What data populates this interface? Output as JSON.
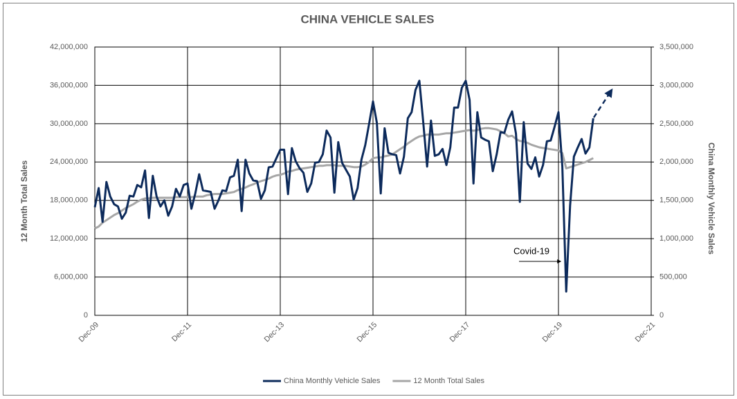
{
  "chart_data": {
    "type": "line",
    "title": "CHINA VEHICLE SALES",
    "y_label": "12 Month Total Sales",
    "y2_label": "China Monthly Vehicle Sales",
    "annotation": "Covid-19",
    "legend": "bottom",
    "grid": true,
    "x": [
      "Dec-09",
      "Jan-10",
      "Feb-10",
      "Mar-10",
      "Apr-10",
      "May-10",
      "Jun-10",
      "Jul-10",
      "Aug-10",
      "Sep-10",
      "Oct-10",
      "Nov-10",
      "Dec-10",
      "Jan-11",
      "Feb-11",
      "Mar-11",
      "Apr-11",
      "May-11",
      "Jun-11",
      "Jul-11",
      "Aug-11",
      "Sep-11",
      "Oct-11",
      "Nov-11",
      "Dec-11",
      "Jan-12",
      "Feb-12",
      "Mar-12",
      "Apr-12",
      "May-12",
      "Jun-12",
      "Jul-12",
      "Aug-12",
      "Sep-12",
      "Oct-12",
      "Nov-12",
      "Dec-12",
      "Jan-13",
      "Feb-13",
      "Mar-13",
      "Apr-13",
      "May-13",
      "Jun-13",
      "Jul-13",
      "Aug-13",
      "Sep-13",
      "Oct-13",
      "Nov-13",
      "Dec-13",
      "Jan-14",
      "Feb-14",
      "Mar-14",
      "Apr-14",
      "May-14",
      "Jun-14",
      "Jul-14",
      "Aug-14",
      "Sep-14",
      "Oct-14",
      "Nov-14",
      "Dec-14",
      "Jan-15",
      "Feb-15",
      "Mar-15",
      "Apr-15",
      "May-15",
      "Jun-15",
      "Jul-15",
      "Aug-15",
      "Sep-15",
      "Oct-15",
      "Nov-15",
      "Dec-15",
      "Jan-16",
      "Feb-16",
      "Mar-16",
      "Apr-16",
      "May-16",
      "Jun-16",
      "Jul-16",
      "Aug-16",
      "Sep-16",
      "Oct-16",
      "Nov-16",
      "Dec-16",
      "Jan-17",
      "Feb-17",
      "Mar-17",
      "Apr-17",
      "May-17",
      "Jun-17",
      "Jul-17",
      "Aug-17",
      "Sep-17",
      "Oct-17",
      "Nov-17",
      "Dec-17",
      "Jan-18",
      "Feb-18",
      "Mar-18",
      "Apr-18",
      "May-18",
      "Jun-18",
      "Jul-18",
      "Aug-18",
      "Sep-18",
      "Oct-18",
      "Nov-18",
      "Dec-18",
      "Jan-19",
      "Feb-19",
      "Mar-19",
      "Apr-19",
      "May-19",
      "Jun-19",
      "Jul-19",
      "Aug-19",
      "Sep-19",
      "Oct-19",
      "Nov-19",
      "Dec-19",
      "Jan-20",
      "Feb-20",
      "Mar-20",
      "Apr-20",
      "May-20",
      "Jun-20",
      "Jul-20",
      "Aug-20",
      "Sep-20"
    ],
    "xlim": [
      "Dec-09",
      "Dec-21"
    ],
    "xticks": [
      "Dec-09",
      "Dec-11",
      "Dec-13",
      "Dec-15",
      "Dec-17",
      "Dec-19",
      "Dec-21"
    ],
    "ylim": [
      0,
      42000000
    ],
    "yticks": [
      0,
      {
        "value": 6000000,
        "label": "6,000,000"
      },
      {
        "value": 12000000,
        "label": "12,000,000"
      },
      {
        "value": 18000000,
        "label": "18,000,000"
      },
      {
        "value": 24000000,
        "label": "24,000,000"
      },
      {
        "value": 30000000,
        "label": "30,000,000"
      },
      {
        "value": 36000000,
        "label": "36,000,000"
      },
      {
        "value": 42000000,
        "label": "42,000,000"
      }
    ],
    "y2lim": [
      0,
      3500000
    ],
    "y2ticks": [
      0,
      {
        "value": 500000,
        "label": "500,000"
      },
      {
        "value": 1000000,
        "label": "1,000,000"
      },
      {
        "value": 1500000,
        "label": "1,500,000"
      },
      {
        "value": 2000000,
        "label": "2,000,000"
      },
      {
        "value": 2500000,
        "label": "2,500,000"
      },
      {
        "value": 3000000,
        "label": "3,000,000"
      },
      {
        "value": 3500000,
        "label": "3,500,000"
      }
    ],
    "series": [
      {
        "name": "China Monthly Vehicle Sales",
        "color": "#0c2a5b",
        "axis": "y2",
        "values": [
          1410000,
          1660000,
          1220000,
          1740000,
          1550000,
          1450000,
          1420000,
          1260000,
          1340000,
          1560000,
          1550000,
          1700000,
          1670000,
          1890000,
          1270000,
          1820000,
          1550000,
          1420000,
          1500000,
          1300000,
          1420000,
          1650000,
          1550000,
          1700000,
          1720000,
          1390000,
          1590000,
          1840000,
          1630000,
          1620000,
          1610000,
          1390000,
          1500000,
          1630000,
          1620000,
          1800000,
          1820000,
          2030000,
          1360000,
          2030000,
          1850000,
          1760000,
          1750000,
          1520000,
          1630000,
          1930000,
          1940000,
          2050000,
          2160000,
          2160000,
          1580000,
          2180000,
          2010000,
          1920000,
          1860000,
          1610000,
          1720000,
          1990000,
          2000000,
          2100000,
          2410000,
          2320000,
          1600000,
          2260000,
          1990000,
          1900000,
          1810000,
          1510000,
          1660000,
          2030000,
          2220000,
          2500000,
          2790000,
          2510000,
          1590000,
          2440000,
          2120000,
          2100000,
          2090000,
          1850000,
          2070000,
          2570000,
          2650000,
          2940000,
          3060000,
          2520000,
          1940000,
          2540000,
          2080000,
          2100000,
          2170000,
          1960000,
          2190000,
          2710000,
          2710000,
          2970000,
          3060000,
          2810000,
          1720000,
          2650000,
          2320000,
          2290000,
          2270000,
          1880000,
          2100000,
          2390000,
          2380000,
          2550000,
          2660000,
          2370000,
          1480000,
          2520000,
          1980000,
          1910000,
          2060000,
          1810000,
          1960000,
          2270000,
          2280000,
          2460000,
          2650000,
          1940000,
          310000,
          1430000,
          2070000,
          2190000,
          2300000,
          2110000,
          2190000,
          2570000
        ]
      },
      {
        "name": "12 Month Total Sales",
        "color": "#a6a6a6",
        "axis": "y",
        "values": [
          13600000,
          13900000,
          14500000,
          14900000,
          15300000,
          15700000,
          16000000,
          16400000,
          16800000,
          17100000,
          17400000,
          17800000,
          18100000,
          18300000,
          18300000,
          18400000,
          18400000,
          18400000,
          18400000,
          18400000,
          18400000,
          18500000,
          18500000,
          18500000,
          18500000,
          18500000,
          18600000,
          18600000,
          18600000,
          18800000,
          18900000,
          19000000,
          19000000,
          19000000,
          19100000,
          19200000,
          19300000,
          19600000,
          19800000,
          20000000,
          20300000,
          20500000,
          20800000,
          21000000,
          21200000,
          21400000,
          21700000,
          21900000,
          22000000,
          22200000,
          22500000,
          22600000,
          22800000,
          22900000,
          23000000,
          23100000,
          23200000,
          23300000,
          23400000,
          23400000,
          23500000,
          23500000,
          23500000,
          23400000,
          23400000,
          23400000,
          23300000,
          23200000,
          23200000,
          23300000,
          23600000,
          24000000,
          24600000,
          24700000,
          24700000,
          24900000,
          25000000,
          25200000,
          25600000,
          26000000,
          26400000,
          26900000,
          27300000,
          27700000,
          28000000,
          28100000,
          28300000,
          28300000,
          28300000,
          28300000,
          28400000,
          28500000,
          28500000,
          28600000,
          28700000,
          28800000,
          28900000,
          29000000,
          28900000,
          29000000,
          29200000,
          29300000,
          29300000,
          29200000,
          29100000,
          28800000,
          28500000,
          28000000,
          28100000,
          27600000,
          27300000,
          27200000,
          27000000,
          26700000,
          26500000,
          26300000,
          26200000,
          26100000,
          26000000,
          25900000,
          25800000,
          25400000,
          23000000,
          23200000,
          23400000,
          23600000,
          23800000,
          24000000,
          24300000,
          24600000
        ]
      }
    ]
  }
}
